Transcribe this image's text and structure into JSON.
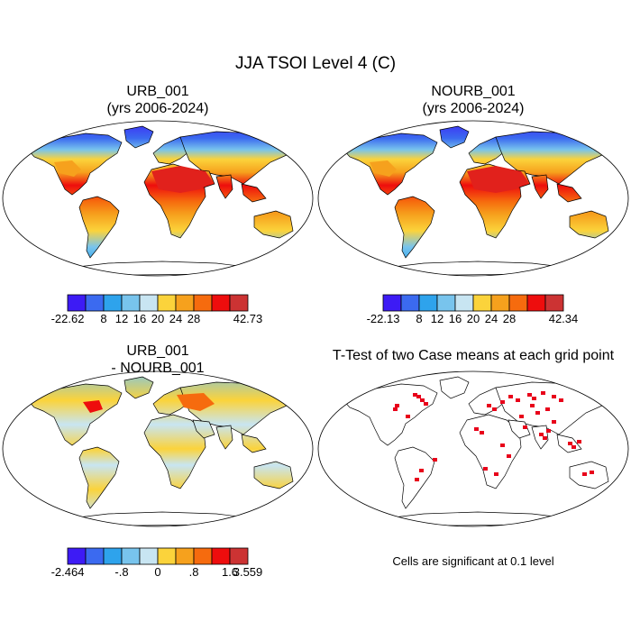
{
  "main_title": "JJA TSOI Level 4 (C)",
  "panels": [
    {
      "id": "urb",
      "title_line1": "URB_001",
      "title_line2": "(yrs 2006-2024)",
      "type": "filled-map"
    },
    {
      "id": "nourb",
      "title_line1": "NOURB_001",
      "title_line2": "(yrs 2006-2024)",
      "type": "filled-map"
    },
    {
      "id": "diff",
      "title_line1": "URB_001",
      "title_line2": "- NOURB_001",
      "type": "filled-map"
    },
    {
      "id": "ttest",
      "title_line1": "T-Test of two Case means at each grid point",
      "title_line2": "",
      "type": "significance-map"
    }
  ],
  "colorbars": [
    {
      "panel": "urb",
      "colors": [
        "#3d1bf5",
        "#3b6af0",
        "#2ea3ec",
        "#78c4ed",
        "#c8e5f2",
        "#fbd33b",
        "#f6a11d",
        "#f66b0e",
        "#ee0d0d",
        "#cc3333"
      ],
      "labels": [
        "-22.62",
        "8",
        "12",
        "16",
        "20",
        "24",
        "28",
        "42.73"
      ],
      "label_boundaries": [
        0,
        2,
        3,
        4,
        5,
        6,
        7,
        10
      ]
    },
    {
      "panel": "nourb",
      "colors": [
        "#3d1bf5",
        "#3b6af0",
        "#2ea3ec",
        "#78c4ed",
        "#c8e5f2",
        "#fbd33b",
        "#f6a11d",
        "#f66b0e",
        "#ee0d0d",
        "#cc3333"
      ],
      "labels": [
        "-22.13",
        "8",
        "12",
        "16",
        "20",
        "24",
        "28",
        "42.34"
      ],
      "label_boundaries": [
        0,
        2,
        3,
        4,
        5,
        6,
        7,
        10
      ]
    },
    {
      "panel": "diff",
      "colors": [
        "#3d1bf5",
        "#3b6af0",
        "#2ea3ec",
        "#78c4ed",
        "#c8e5f2",
        "#fbd33b",
        "#f6a11d",
        "#f66b0e",
        "#ee0d0d",
        "#cc3333"
      ],
      "labels": [
        "-2.464",
        "-.8",
        "0",
        ".8",
        "1.6",
        "3.559"
      ],
      "label_boundaries": [
        0,
        3,
        5,
        7,
        9,
        10
      ]
    }
  ],
  "note": "Cells are significant at 0.1 level",
  "chart_data": [
    {
      "type": "heatmap",
      "title": "URB_001 (yrs 2006-2024)",
      "variable": "JJA TSOI Level 4",
      "units": "C",
      "range": [
        -22.62,
        42.73
      ],
      "levels": [
        8,
        12,
        16,
        20,
        24,
        28
      ]
    },
    {
      "type": "heatmap",
      "title": "NOURB_001 (yrs 2006-2024)",
      "variable": "JJA TSOI Level 4",
      "units": "C",
      "range": [
        -22.13,
        42.34
      ],
      "levels": [
        8,
        12,
        16,
        20,
        24,
        28
      ]
    },
    {
      "type": "heatmap",
      "title": "URB_001 - NOURB_001",
      "variable": "JJA TSOI Level 4 difference",
      "units": "C",
      "range": [
        -2.464,
        3.559
      ],
      "levels": [
        -0.8,
        0,
        0.8,
        1.6
      ]
    },
    {
      "type": "heatmap",
      "title": "T-Test of two Case means at each grid point",
      "significance_level": 0.1
    }
  ]
}
